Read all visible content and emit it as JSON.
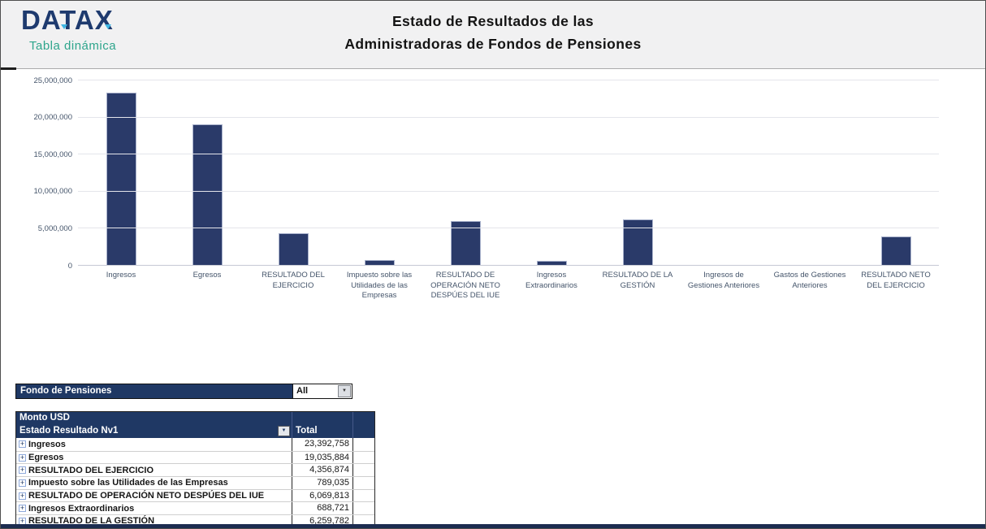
{
  "header": {
    "brand": "DATAX",
    "brand_subtitle": "Tabla dinámica",
    "title_line1": "Estado de Resultados de las",
    "title_line2": "Administradoras de Fondos de Pensiones"
  },
  "chart_data": {
    "type": "bar",
    "title": "",
    "xlabel": "",
    "ylabel": "",
    "categories": [
      "Ingresos",
      "Egresos",
      "RESULTADO DEL EJERCICIO",
      "Impuesto sobre las Utilidades de las Empresas",
      "RESULTADO DE OPERACIÓN NETO DESPÚES DEL IUE",
      "Ingresos Extraordinarios",
      "RESULTADO DE LA GESTIÓN",
      "Ingresos de Gestiones Anteriores",
      "Gastos de Gestiones Anteriores",
      "RESULTADO NETO DEL EJERCICIO"
    ],
    "values": [
      23392758,
      19035884,
      4356874,
      789035,
      6069813,
      688721,
      6259782,
      60000,
      120000,
      3960000
    ],
    "ylim": [
      0,
      25000000
    ],
    "ytick_labels": [
      "0",
      "5,000,000",
      "10,000,000",
      "15,000,000",
      "20,000,000",
      "25,000,000"
    ],
    "grid": true,
    "legend": "none",
    "bar_color": "#2a3a69",
    "bar_border_color": "#a9b2cc"
  },
  "filter": {
    "label": "Fondo de Pensiones",
    "value": "All"
  },
  "pivot": {
    "title": "Monto USD",
    "row_header": "Estado Resultado Nv1",
    "value_header": "Total",
    "rows": [
      {
        "label": "Ingresos",
        "value": "23,392,758"
      },
      {
        "label": "Egresos",
        "value": "19,035,884"
      },
      {
        "label": "RESULTADO DEL EJERCICIO",
        "value": "4,356,874"
      },
      {
        "label": "Impuesto sobre las Utilidades de las Empresas",
        "value": "789,035"
      },
      {
        "label": "RESULTADO DE OPERACIÓN NETO DESPÚES DEL IUE",
        "value": "6,069,813"
      },
      {
        "label": "Ingresos Extraordinarios",
        "value": "688,721"
      },
      {
        "label": "RESULTADO DE LA GESTIÓN",
        "value": "6,259,782"
      }
    ]
  },
  "icons": {
    "dropdown_arrow": "▼",
    "expand": "+"
  },
  "colors": {
    "navy": "#1f3864",
    "teal": "#2ea58c",
    "logo_navy": "#1e3a6e",
    "axis_text": "#44546a",
    "bottom_strip": "#1c2c50"
  }
}
